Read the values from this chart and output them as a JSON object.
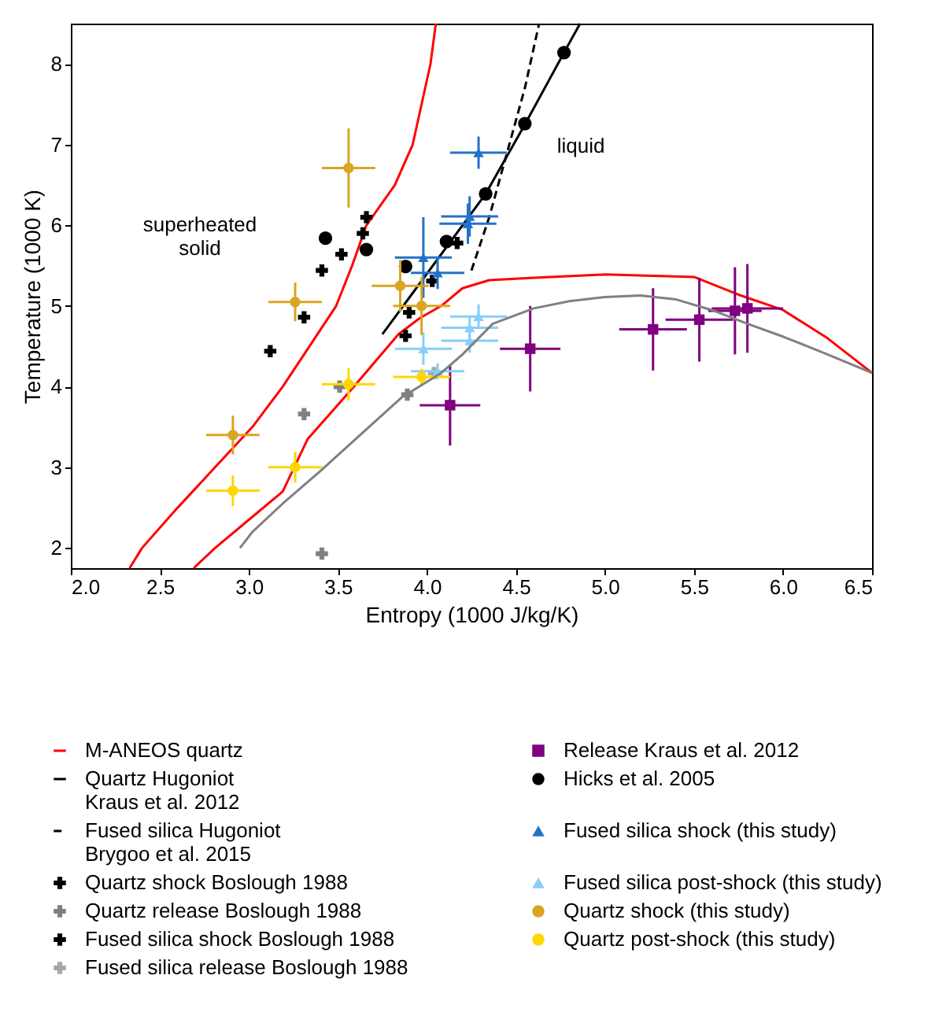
{
  "chart_data": {
    "type": "scatter",
    "xlabel": "Entropy (1000 J/kg/K)",
    "ylabel": "Temperature (1000 K)",
    "xlim": [
      2.0,
      6.5
    ],
    "ylim": [
      1.75,
      8.5
    ],
    "xticks": [
      {
        "value": 2,
        "label": "2.0"
      },
      {
        "value": 2.5,
        "label": "2.5"
      },
      {
        "value": 3,
        "label": "3.0"
      },
      {
        "value": 3.5,
        "label": "3.5"
      },
      {
        "value": 4,
        "label": "4.0"
      },
      {
        "value": 4.5,
        "label": "4.5"
      },
      {
        "value": 5,
        "label": "5.0"
      },
      {
        "value": 5.5,
        "label": "5.5"
      },
      {
        "value": 6,
        "label": "6.0"
      },
      {
        "value": 6.5,
        "label": "6.5"
      }
    ],
    "yticks": [
      2,
      3,
      4,
      5,
      6,
      7,
      8
    ],
    "grid": false,
    "legend": "bottom",
    "annotations": [
      "superheated\nsolid",
      "liquid"
    ],
    "series": [
      {
        "name": "M-ANEOS quartz",
        "type": "line",
        "color": "#ff0000",
        "line_style": "solid",
        "x": [
          2.33,
          2.4,
          2.6,
          2.81,
          3.02,
          3.19,
          3.34,
          3.49,
          3.58,
          3.66,
          3.82,
          3.92,
          3.97,
          4.02,
          4.05
        ],
        "values": [
          1.75,
          2.0,
          2.5,
          3.0,
          3.5,
          4.0,
          4.5,
          5.0,
          5.5,
          6.0,
          6.5,
          7.0,
          7.5,
          8.0,
          8.5
        ]
      },
      {
        "type": "line",
        "color": "#ff0000",
        "line_style": "solid",
        "x": [
          2.69,
          2.81,
          3.0,
          3.19,
          3.33,
          3.59,
          3.84,
          3.96,
          4.08,
          4.2,
          4.35,
          4.6,
          5.0,
          5.5,
          5.75,
          6.0,
          6.25,
          6.5
        ],
        "values": [
          1.75,
          2.0,
          2.35,
          2.7,
          3.35,
          4.0,
          4.65,
          4.85,
          5.0,
          5.22,
          5.32,
          5.35,
          5.39,
          5.36,
          5.14,
          4.95,
          4.6,
          4.17
        ]
      },
      {
        "name": "Quartz Hugoniot\nKraus et al. 2012",
        "type": "line",
        "color": "#000000",
        "line_style": "solid",
        "x": [
          3.75,
          4.33,
          4.55,
          4.77,
          4.86
        ],
        "values": [
          4.65,
          6.39,
          7.25,
          8.14,
          8.5
        ]
      },
      {
        "name": "Fused silica Hugoniot\nBrygoo et al. 2015",
        "type": "line",
        "color": "#000000",
        "line_style": "dashed",
        "x": [
          4.25,
          4.35,
          4.45,
          4.55,
          4.63
        ],
        "values": [
          5.44,
          6.1,
          6.9,
          7.7,
          8.5
        ]
      },
      {
        "name": "Quartz shock Boslough 1988",
        "marker": "cross",
        "color": "#000000",
        "x": [
          3.66,
          3.64,
          3.52,
          3.41,
          3.31,
          3.12,
          3.9,
          4.03,
          4.17
        ],
        "values": [
          6.1,
          5.9,
          5.64,
          5.44,
          4.86,
          4.44,
          4.92,
          5.31,
          5.78
        ]
      },
      {
        "name": "Quartz release Boslough 1988",
        "marker": "cross",
        "color": "#808080",
        "x": [
          3.31,
          3.51,
          3.41,
          3.89
        ],
        "values": [
          3.66,
          4.0,
          1.93,
          3.9
        ]
      },
      {
        "name": "Fused silica shock Boslough 1988",
        "marker": "cross",
        "color": "#000000",
        "x": [
          3.88
        ],
        "values": [
          4.63
        ]
      },
      {
        "name": "Fused silica release Boslough 1988",
        "marker": "cross",
        "color": "#a6a6a6",
        "x": [
          4.04
        ],
        "values": [
          4.17
        ]
      },
      {
        "name": "Release Kraus et al. 2012",
        "marker": "square",
        "color": "#800080",
        "x": [
          4.13,
          4.58,
          5.27,
          5.53,
          5.73,
          5.8
        ],
        "values": [
          3.77,
          4.47,
          4.71,
          4.83,
          4.94,
          4.97
        ],
        "errors": [
          0.5,
          0.53,
          0.51,
          0.52,
          0.54,
          0.55
        ],
        "xerrors": [
          0.17,
          0.17,
          0.19,
          0.19,
          0.15,
          0.2
        ]
      },
      {
        "name": "Hicks et al. 2005",
        "marker": "circle",
        "color": "#000000",
        "x": [
          4.77,
          4.55,
          4.33,
          4.11,
          3.88,
          3.66,
          3.43
        ],
        "values": [
          8.14,
          7.26,
          6.39,
          5.8,
          5.49,
          5.7,
          5.84
        ]
      },
      {
        "name": "Fused silica shock (this study)",
        "marker": "triangle",
        "color": "#2372c8",
        "x": [
          4.29,
          4.24,
          4.23,
          3.98,
          4.06
        ],
        "values": [
          6.9,
          6.11,
          6.02,
          5.6,
          5.41
        ],
        "errors": [
          0.2,
          0.25,
          0.25,
          0.5,
          0.2
        ],
        "xerrors": [
          0.16,
          0.16,
          0.16,
          0.16,
          0.15
        ]
      },
      {
        "name": "Fused silica post-shock (this study)",
        "marker": "triangle",
        "color": "#87cefa",
        "x": [
          4.29,
          4.24,
          4.24,
          3.98,
          4.06
        ],
        "values": [
          4.87,
          4.73,
          4.57,
          4.47,
          4.19
        ],
        "errors": [
          0.15,
          0.15,
          0.15,
          0.2,
          0.1
        ],
        "xerrors": [
          0.16,
          0.16,
          0.16,
          0.16,
          0.15
        ]
      },
      {
        "name": "Quartz shock (this study)",
        "marker": "circle",
        "color": "#daa520",
        "x": [
          3.56,
          3.26,
          2.91,
          3.85,
          3.97
        ],
        "values": [
          6.71,
          5.05,
          3.4,
          5.25,
          5.0
        ],
        "errors": [
          0.49,
          0.24,
          0.24,
          0.32,
          0.36
        ],
        "xerrors": [
          0.15,
          0.15,
          0.15,
          0.16,
          0.16
        ]
      },
      {
        "name": "Quartz post-shock (this study)",
        "marker": "circle",
        "color": "#ffd700",
        "x": [
          2.91,
          3.26,
          3.56,
          3.97
        ],
        "values": [
          2.71,
          3.0,
          4.03,
          4.12
        ],
        "errors": [
          0.19,
          0.19,
          0.2,
          0.1
        ],
        "xerrors": [
          0.15,
          0.15,
          0.15,
          0.16
        ]
      },
      {
        "type": "line",
        "color": "#808080",
        "line_style": "solid",
        "x": [
          2.95,
          3.02,
          3.19,
          3.4,
          3.6,
          3.86,
          4.08,
          4.2,
          4.37,
          4.6,
          4.8,
          5.0,
          5.2,
          5.4,
          5.6,
          5.8,
          6.0,
          6.25,
          6.5
        ],
        "values": [
          2.0,
          2.2,
          2.55,
          2.95,
          3.35,
          3.87,
          4.17,
          4.4,
          4.78,
          4.97,
          5.06,
          5.11,
          5.13,
          5.08,
          4.95,
          4.78,
          4.62,
          4.4,
          4.17
        ]
      }
    ]
  }
}
